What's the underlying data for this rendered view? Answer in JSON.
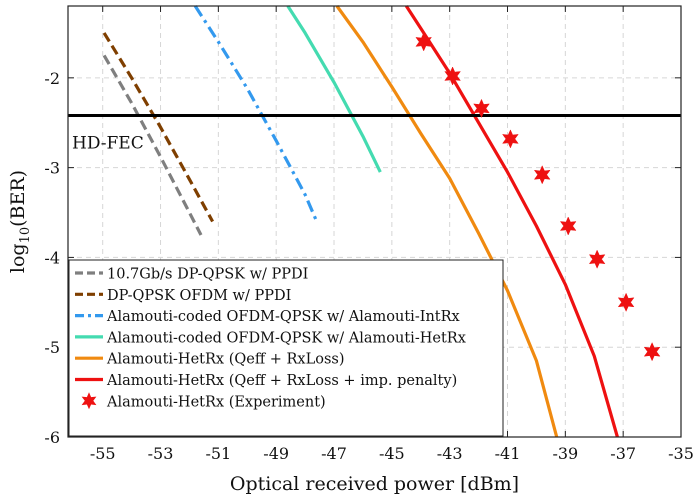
{
  "chart_data": {
    "type": "line",
    "xlabel": "Optical received power [dBm]",
    "ylabel_main": "log",
    "ylabel_sub": "10",
    "ylabel_rest": "(BER)",
    "xlim": [
      -56.2,
      -35
    ],
    "ylim": [
      -6,
      -1.2
    ],
    "xticks": [
      -55,
      -53,
      -51,
      -49,
      -47,
      -45,
      -43,
      -41,
      -39,
      -37,
      -35
    ],
    "yticks": [
      -6,
      -5,
      -4,
      -3,
      -2
    ],
    "grid": true,
    "hdfec": {
      "label": "HD-FEC",
      "y": -2.42
    },
    "legend_position": "bottom-left",
    "series": [
      {
        "name": "10.7Gb/s DP-QPSK w/ PPDI",
        "color": "#7f7f7f",
        "dash": "dashed",
        "x": [
          -54.95,
          -54.0,
          -53.0,
          -52.0,
          -51.6
        ],
        "y": [
          -1.75,
          -2.28,
          -2.88,
          -3.5,
          -3.75
        ]
      },
      {
        "name": "DP-QPSK OFDM w/ PPDI",
        "color": "#7f3f00",
        "dash": "dashed",
        "x": [
          -54.95,
          -54.0,
          -53.0,
          -52.0,
          -51.2
        ],
        "y": [
          -1.5,
          -2.0,
          -2.55,
          -3.13,
          -3.6
        ]
      },
      {
        "name": "Alamouti-coded OFDM-QPSK w/ Alamouti-IntRx",
        "color": "#3399ee",
        "dash": "dashdot",
        "x": [
          -51.8,
          -51.0,
          -50.0,
          -49.0,
          -48.0,
          -47.6
        ],
        "y": [
          -1.2,
          -1.6,
          -2.12,
          -2.7,
          -3.3,
          -3.6
        ]
      },
      {
        "name": "Alamouti-coded OFDM-QPSK w/ Alamouti-HetRx",
        "color": "#44dbb0",
        "dash": "solid",
        "x": [
          -48.6,
          -48.0,
          -47.0,
          -46.0,
          -45.4
        ],
        "y": [
          -1.2,
          -1.5,
          -2.05,
          -2.65,
          -3.05
        ]
      },
      {
        "name": "Alamouti-HetRx (Qeff + RxLoss)",
        "color": "#f08a10",
        "dash": "solid",
        "x": [
          -46.9,
          -46.0,
          -45.0,
          -44.0,
          -43.0,
          -42.0,
          -41.0,
          -40.0,
          -39.3
        ],
        "y": [
          -1.2,
          -1.6,
          -2.1,
          -2.62,
          -3.12,
          -3.73,
          -4.37,
          -5.15,
          -6.0
        ]
      },
      {
        "name": "Alamouti-HetRx (Qeff + RxLoss + imp. penalty)",
        "color": "#ee1111",
        "dash": "solid",
        "x": [
          -44.5,
          -44.0,
          -43.0,
          -42.0,
          -41.0,
          -40.0,
          -39.0,
          -38.0,
          -37.2
        ],
        "y": [
          -1.2,
          -1.45,
          -1.95,
          -2.5,
          -3.05,
          -3.65,
          -4.3,
          -5.1,
          -6.0
        ]
      }
    ],
    "experiment": {
      "name": "Alamouti-HetRx (Experiment)",
      "color": "#ee1111",
      "x": [
        -43.9,
        -42.9,
        -41.9,
        -40.9,
        -39.8,
        -38.9,
        -37.9,
        -36.9,
        -36.0
      ],
      "y": [
        -1.6,
        -1.98,
        -2.34,
        -2.68,
        -3.08,
        -3.65,
        -4.02,
        -4.5,
        -5.05
      ]
    }
  }
}
